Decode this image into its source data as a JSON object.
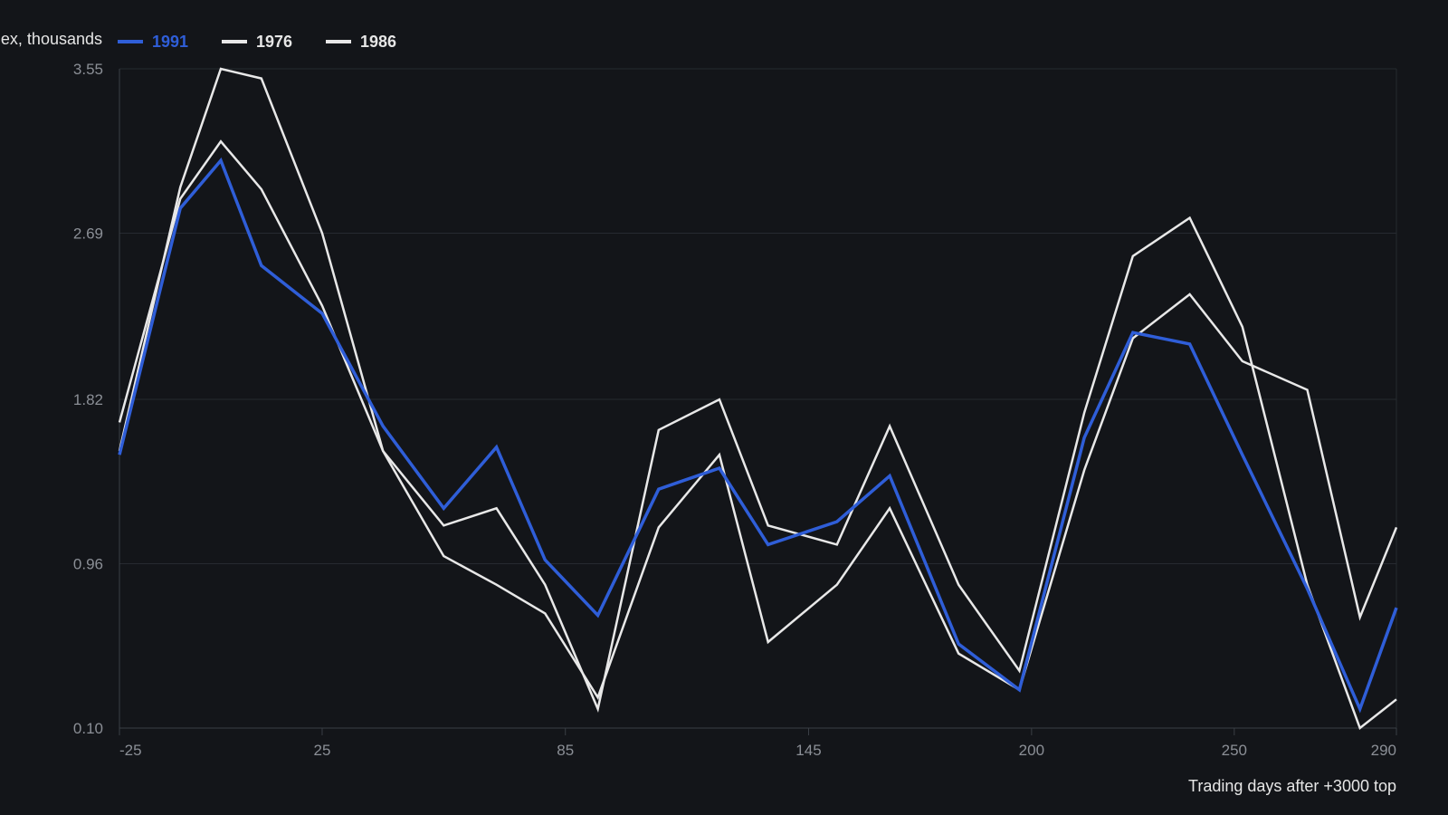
{
  "chart_data": {
    "type": "line",
    "ylabel": "ex, thousands",
    "xlabel": "Trading days after +3000 top",
    "xlim": [
      -25,
      290
    ],
    "ylim": [
      0.1,
      3.55
    ],
    "x_ticks": [
      -25,
      25,
      85,
      145,
      200,
      250,
      290
    ],
    "y_ticks": [
      0.1,
      0.96,
      1.82,
      2.69,
      3.55
    ],
    "y_tick_labels": [
      "0.10",
      "0.96",
      "1.82",
      "2.69",
      "3.55"
    ],
    "grid": "horizontal",
    "legend": "top-left",
    "series": [
      {
        "name": "1991",
        "color": "#2f5ed8",
        "x": [
          -25,
          -10,
          0,
          10,
          25,
          40,
          55,
          68,
          80,
          93,
          108,
          123,
          135,
          152,
          165,
          182,
          197,
          213,
          225,
          239,
          252,
          268,
          281,
          290
        ],
        "y": [
          1.53,
          2.82,
          3.07,
          2.52,
          2.27,
          1.68,
          1.25,
          1.57,
          0.98,
          0.69,
          1.35,
          1.46,
          1.06,
          1.18,
          1.42,
          0.54,
          0.3,
          1.62,
          2.17,
          2.11,
          1.53,
          0.83,
          0.2,
          0.73
        ]
      },
      {
        "name": "1976",
        "color": "#e8e8e8",
        "x": [
          -25,
          -10,
          0,
          10,
          25,
          40,
          55,
          68,
          80,
          93,
          108,
          123,
          135,
          152,
          165,
          182,
          197,
          213,
          225,
          239,
          252,
          268,
          281,
          290
        ],
        "y": [
          1.7,
          2.87,
          3.17,
          2.92,
          2.31,
          1.55,
          1.0,
          0.85,
          0.7,
          0.26,
          1.15,
          1.53,
          0.55,
          0.85,
          1.25,
          0.49,
          0.3,
          1.45,
          2.14,
          2.37,
          2.02,
          1.87,
          0.68,
          1.15
        ]
      },
      {
        "name": "1986",
        "color": "#e8e8e8",
        "x": [
          -25,
          -10,
          0,
          10,
          25,
          40,
          55,
          68,
          80,
          93,
          108,
          123,
          135,
          152,
          165,
          182,
          197,
          213,
          225,
          239,
          252,
          268,
          281,
          290
        ],
        "y": [
          1.55,
          2.93,
          3.55,
          3.5,
          2.69,
          1.55,
          1.16,
          1.25,
          0.85,
          0.2,
          1.66,
          1.82,
          1.16,
          1.06,
          1.68,
          0.85,
          0.4,
          1.75,
          2.57,
          2.77,
          2.2,
          0.85,
          0.1,
          0.25
        ]
      }
    ]
  }
}
